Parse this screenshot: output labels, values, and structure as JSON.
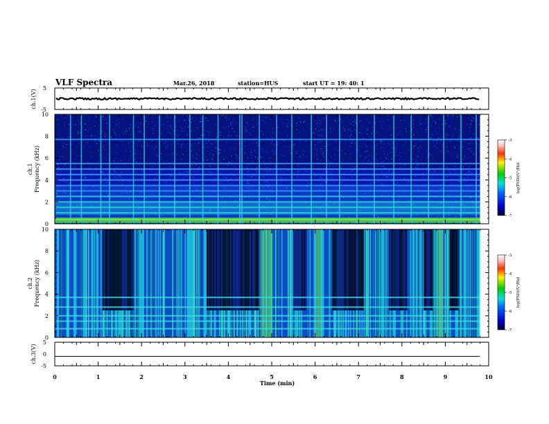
{
  "header": {
    "title": "VLF Spectra",
    "date": "Mar.26, 2018",
    "station": "station=HUS",
    "start": "start UT =  19: 40: 1"
  },
  "chart_data": [
    {
      "type": "line",
      "name": "ch1-waveform",
      "ylabel": "ch.1(V)",
      "ylim": [
        -5,
        5
      ],
      "yticks": [
        "5",
        "-5"
      ],
      "level": 0
    },
    {
      "type": "heatmap",
      "name": "ch1-spectrogram",
      "ylabel_top": "ch.1",
      "ylabel": "Frequency (kHz)",
      "ylim": [
        0,
        10
      ],
      "yticks": [
        "0",
        "2",
        "4",
        "6",
        "8",
        "10"
      ],
      "colorbar": {
        "label": "log(PSD)(V²/Hz)",
        "range": [
          -7,
          -3
        ],
        "ticks": [
          "-3",
          "-4",
          "-5",
          "-6",
          "-7"
        ]
      },
      "bands_khz": [
        0.2,
        0.5,
        1.0,
        1.5,
        2.0,
        2.5,
        3.0,
        3.5,
        4.0,
        4.5,
        5.0,
        5.5,
        7.7
      ],
      "bursts_min": [
        0.35,
        0.6,
        1.05,
        1.25,
        1.8,
        2.05,
        2.4,
        2.75,
        3.1,
        3.4,
        3.75,
        4.25,
        4.3,
        4.7,
        5.1,
        5.45,
        5.9,
        6.25,
        6.55,
        6.95,
        7.35,
        7.8,
        8.2,
        8.6,
        8.95,
        9.35,
        9.7
      ]
    },
    {
      "type": "heatmap",
      "name": "ch2-spectrogram",
      "ylabel_top": "ch.2",
      "ylabel": "Frequency (kHz)",
      "ylim": [
        0,
        10
      ],
      "yticks": [
        "0",
        "2",
        "4",
        "6",
        "8",
        "10"
      ],
      "colorbar": {
        "label": "log(PSD)(V²/Hz)",
        "range": [
          -7,
          -3
        ],
        "ticks": [
          "-3",
          "-4",
          "-5",
          "-6",
          "-7"
        ]
      },
      "bands_khz": [
        0.8,
        1.5,
        2.0,
        2.8,
        3.7
      ],
      "dark_min": [
        [
          1.1,
          1.8
        ],
        [
          3.5,
          4.7
        ],
        [
          5.5,
          5.8
        ],
        [
          6.4,
          7.1
        ],
        [
          7.7,
          8.1
        ],
        [
          8.5,
          8.7
        ],
        [
          9.1,
          9.3
        ]
      ],
      "bright_min": [
        [
          4.75,
          5.0
        ],
        [
          6.0,
          6.15
        ],
        [
          8.8,
          8.95
        ]
      ]
    },
    {
      "type": "line",
      "name": "ch3-waveform",
      "ylabel": "ch.3(V)",
      "ylim": [
        -5,
        5
      ],
      "yticks": [
        "5",
        "0",
        "-5"
      ],
      "level": -1
    }
  ],
  "xaxis": {
    "label": "Time (min)",
    "range": [
      0,
      10
    ],
    "ticks": [
      "0",
      "1",
      "2",
      "3",
      "4",
      "5",
      "6",
      "7",
      "8",
      "9",
      "10"
    ],
    "data_end": 9.8
  }
}
